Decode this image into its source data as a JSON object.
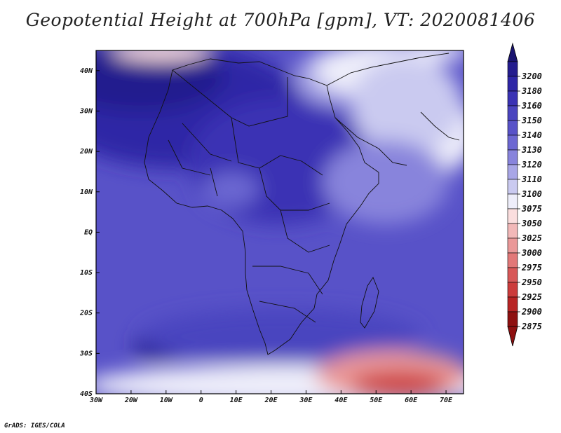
{
  "title": "Geopotential Height at 700hPa [gpm], VT: 2020081406",
  "credit": "GrADS: IGES/COLA",
  "map": {
    "region": "Africa",
    "lon_range": [
      -30,
      75
    ],
    "lat_range": [
      -40,
      45
    ],
    "x_ticks": [
      "30W",
      "20W",
      "10W",
      "0",
      "10E",
      "20E",
      "30E",
      "40E",
      "50E",
      "60E",
      "70E"
    ],
    "y_ticks": [
      "40N",
      "30N",
      "20N",
      "10N",
      "EQ",
      "10S",
      "20S",
      "30S",
      "40S"
    ]
  },
  "colorbar": {
    "levels": [
      "3200",
      "3180",
      "3160",
      "3150",
      "3140",
      "3130",
      "3120",
      "3110",
      "3100",
      "3075",
      "3050",
      "3025",
      "3000",
      "2975",
      "2950",
      "2925",
      "2900",
      "2875"
    ],
    "colors": [
      "#241c8e",
      "#2e26a6",
      "#3a32b4",
      "#4a44bf",
      "#5852c8",
      "#6c67d2",
      "#8884dc",
      "#a8a6e6",
      "#cacaf0",
      "#eeeefa",
      "#fbdede",
      "#f2b8b8",
      "#ea9898",
      "#e27878",
      "#d85858",
      "#cc3c3c",
      "#b82424",
      "#8e1010"
    ],
    "cap_top_color": "#1a1470",
    "cap_bottom_color": "#8e1010"
  }
}
